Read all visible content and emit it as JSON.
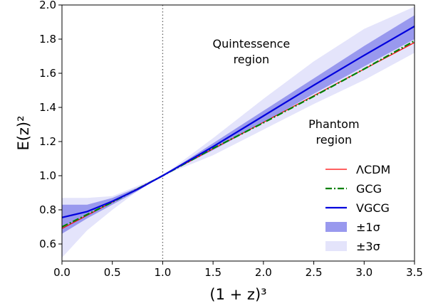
{
  "chart_data": {
    "type": "line",
    "xlabel": "(1 + z)³",
    "ylabel": "E(z)²",
    "xlim": [
      0.0,
      3.5
    ],
    "ylim": [
      0.5,
      2.0
    ],
    "xticks": [
      "0.0",
      "0.5",
      "1.0",
      "1.5",
      "2.0",
      "2.5",
      "3.0",
      "3.5"
    ],
    "yticks": [
      "0.6",
      "0.8",
      "1.0",
      "1.2",
      "1.4",
      "1.6",
      "1.8",
      "2.0"
    ],
    "grid": false,
    "reference_line": {
      "x": 1.0,
      "style": "dotted",
      "color": "#666666"
    },
    "annotations": [
      {
        "lines": [
          "Quintessence",
          "region"
        ],
        "x": 1.88,
        "y": 1.75
      },
      {
        "lines": [
          "Phantom",
          "region"
        ],
        "x": 2.7,
        "y": 1.28
      }
    ],
    "legend": {
      "placement": "lower-right"
    },
    "series": [
      {
        "name": "ΛCDM",
        "style": "solid",
        "color": "#ff0000",
        "x": [
          0.0,
          3.5
        ],
        "y": [
          0.69,
          1.78
        ]
      },
      {
        "name": "GCG",
        "style": "dashdot",
        "color": "#008000",
        "x": [
          0.0,
          0.5,
          1.0,
          1.5,
          2.0,
          2.5,
          3.0,
          3.5
        ],
        "y": [
          0.7,
          0.845,
          1.0,
          1.16,
          1.31,
          1.465,
          1.625,
          1.79
        ]
      },
      {
        "name": "VGCG",
        "style": "solid",
        "color": "#0000dd",
        "x": [
          0.0,
          0.25,
          0.5,
          0.75,
          1.0,
          1.5,
          2.0,
          2.5,
          3.0,
          3.5
        ],
        "y": [
          0.755,
          0.79,
          0.85,
          0.92,
          1.0,
          1.17,
          1.35,
          1.53,
          1.705,
          1.875
        ]
      }
    ],
    "bands": [
      {
        "name": "±3σ",
        "color": "#e4e4fb",
        "x": [
          0.0,
          0.25,
          0.5,
          0.75,
          1.0,
          1.5,
          2.0,
          2.5,
          3.0,
          3.5
        ],
        "lower": [
          0.52,
          0.68,
          0.8,
          0.91,
          1.0,
          1.12,
          1.27,
          1.42,
          1.56,
          1.72
        ],
        "upper": [
          0.87,
          0.87,
          0.88,
          0.94,
          1.0,
          1.22,
          1.45,
          1.67,
          1.86,
          1.99
        ]
      },
      {
        "name": "±1σ",
        "color": "#9999ee",
        "x": [
          0.0,
          0.25,
          0.5,
          0.75,
          1.0,
          1.5,
          2.0,
          2.5,
          3.0,
          3.5
        ],
        "lower": [
          0.66,
          0.75,
          0.83,
          0.91,
          1.0,
          1.15,
          1.31,
          1.48,
          1.64,
          1.8
        ],
        "upper": [
          0.83,
          0.83,
          0.87,
          0.93,
          1.0,
          1.19,
          1.38,
          1.57,
          1.76,
          1.94
        ]
      }
    ]
  }
}
